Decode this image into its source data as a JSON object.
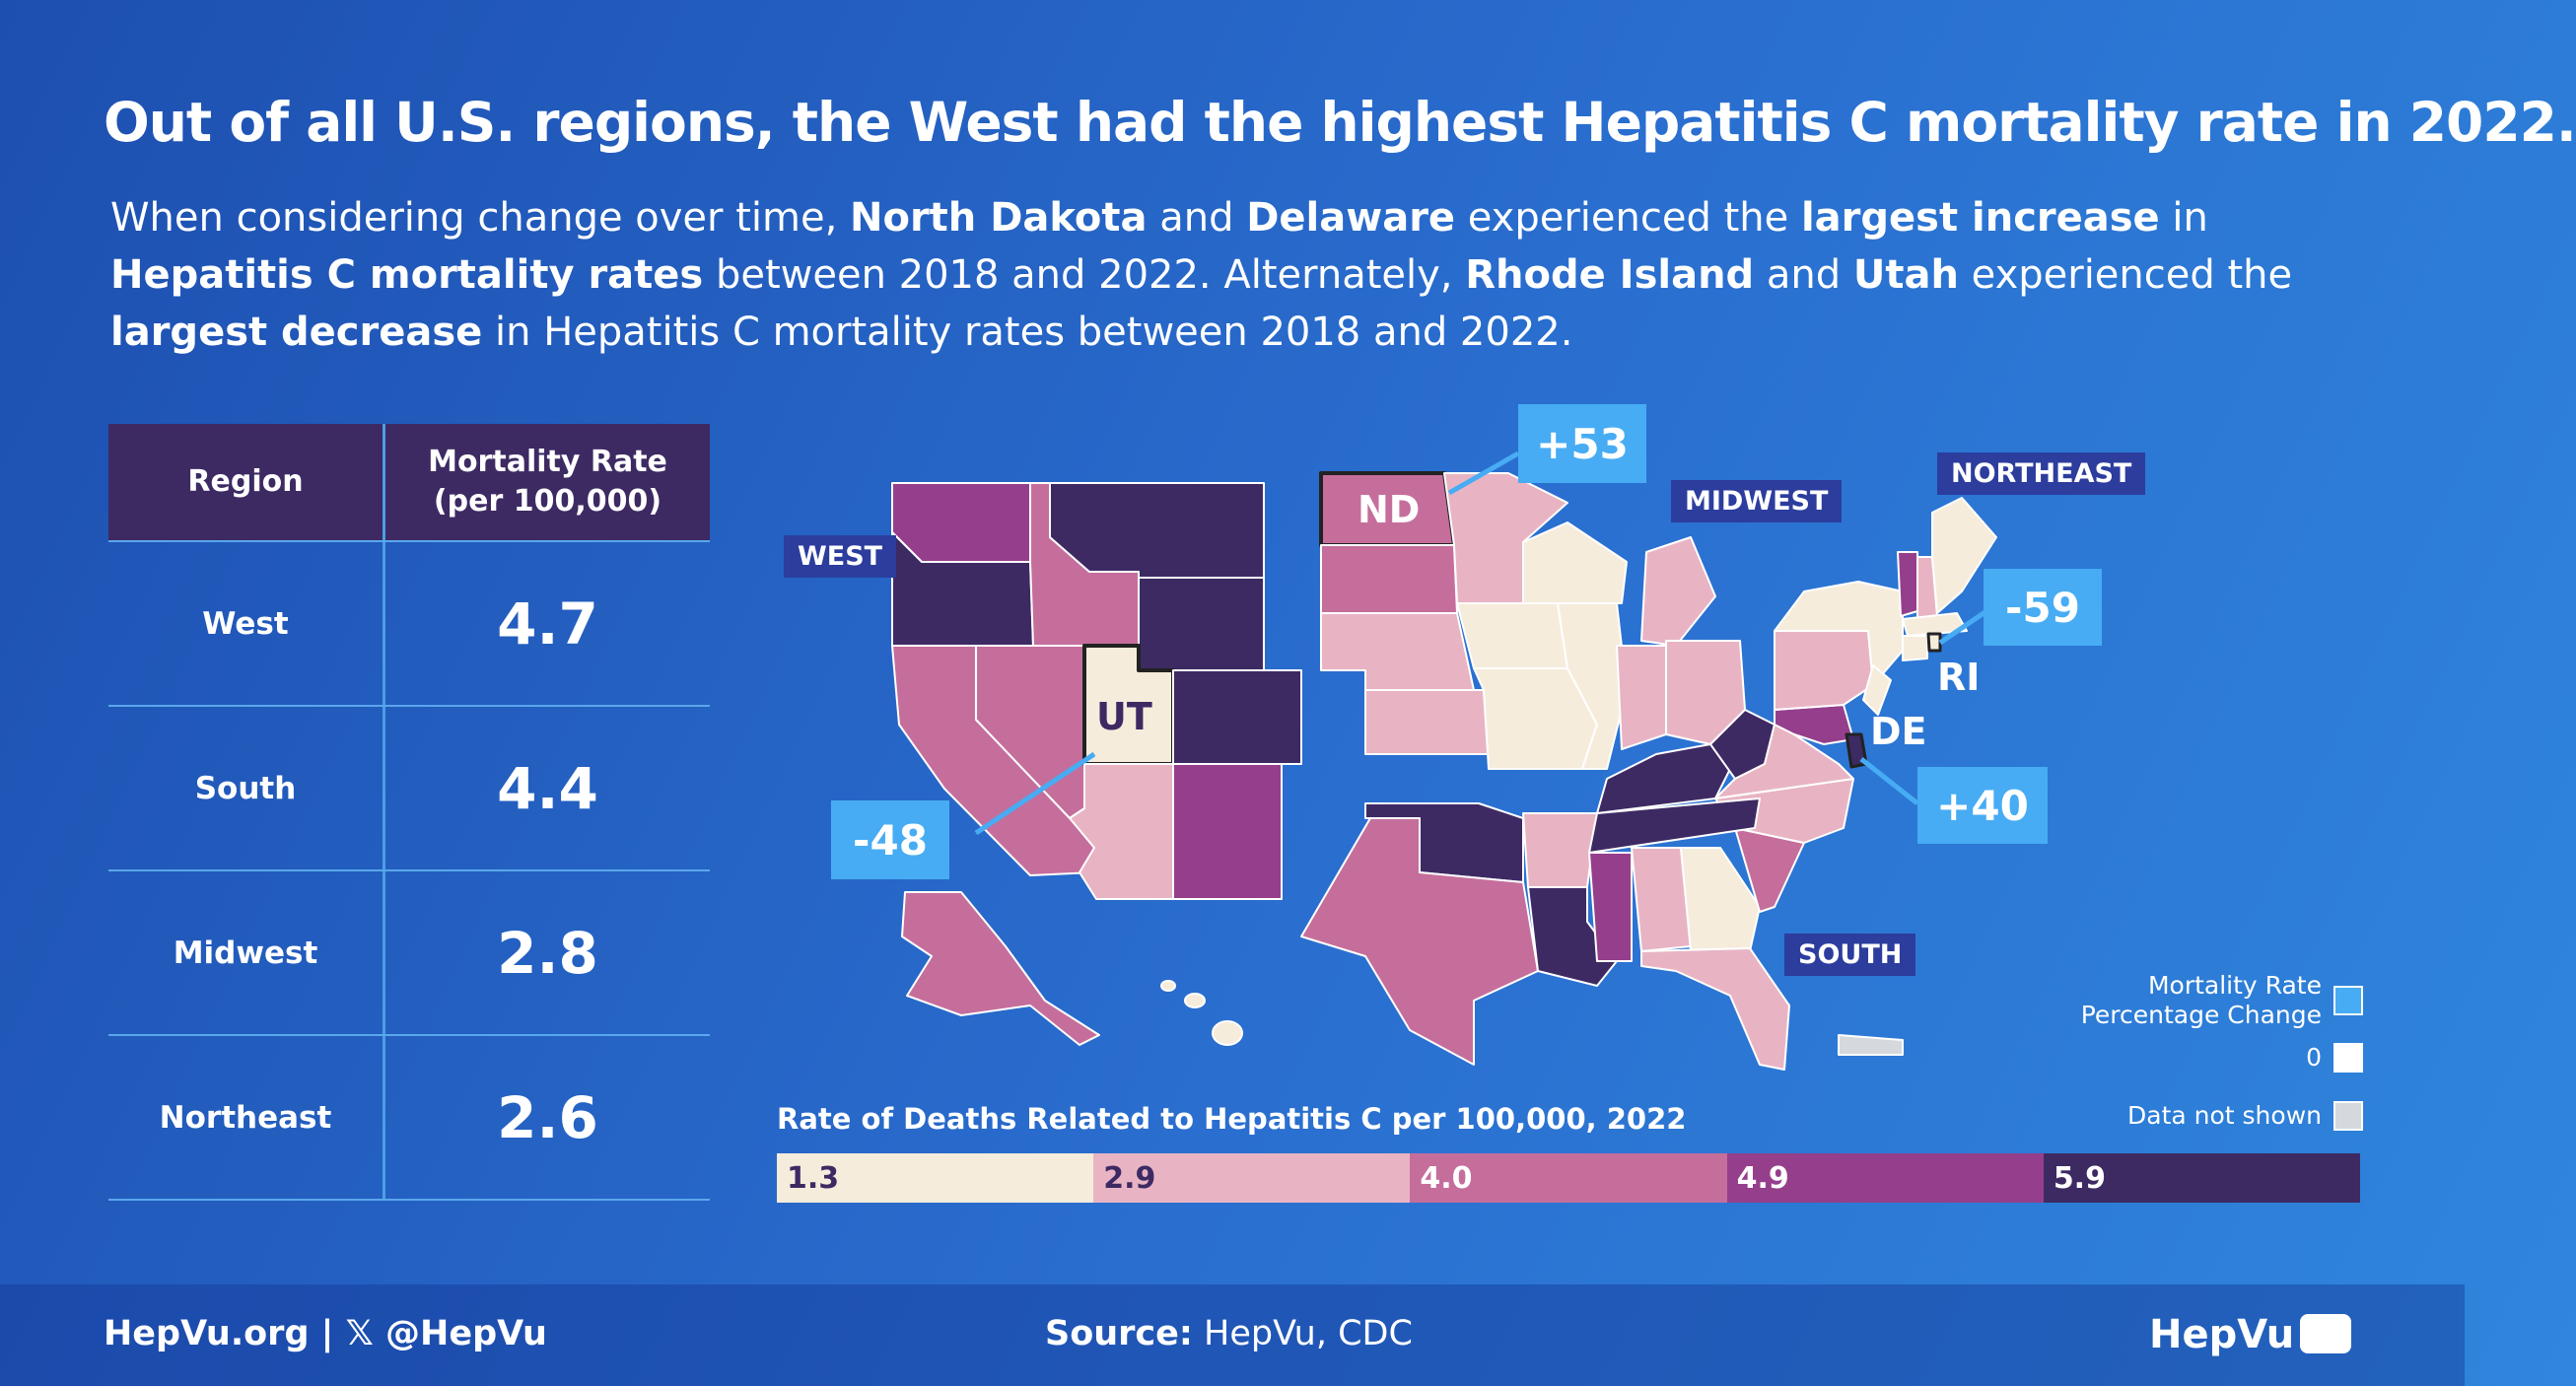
{
  "title": "Out of all U.S. regions, the West had the highest Hepatitis C mortality rate in 2022.",
  "intro": {
    "p1": "When considering change over time, ",
    "b1": "North Dakota",
    "p2": " and ",
    "b2": "Delaware",
    "p3": " experienced the ",
    "b3": "largest increase",
    "p4": " in ",
    "b4": "Hepatitis C mortality rates",
    "p5": " between 2018 and 2022. Alternately, ",
    "b5": "Rhode Island",
    "p6": " and ",
    "b6": "Utah",
    "p7": " experienced the ",
    "b7": "largest decrease",
    "p8": " in Hepatitis C mortality rates between 2018 and 2022."
  },
  "table": {
    "header_region": "Region",
    "header_rate_line1": "Mortality Rate",
    "header_rate_line2": "(per 100,000)",
    "rows": [
      {
        "region": "West",
        "rate": "4.7"
      },
      {
        "region": "South",
        "rate": "4.4"
      },
      {
        "region": "Midwest",
        "rate": "2.8"
      },
      {
        "region": "Northeast",
        "rate": "2.6"
      }
    ]
  },
  "map": {
    "regions": {
      "west": "WEST",
      "midwest": "MIDWEST",
      "northeast": "NORTHEAST",
      "south": "SOUTH"
    },
    "state_labels": {
      "nd": "ND",
      "ut": "UT",
      "ri": "RI",
      "de": "DE"
    },
    "callouts": {
      "nd": "+53",
      "ut": "-48",
      "ri": "-59",
      "de": "+40"
    }
  },
  "legend": {
    "title": "Rate of Deaths Related to Hepatitis C per 100,000, 2022",
    "bins": [
      "1.3",
      "2.9",
      "4.0",
      "4.9",
      "5.9"
    ],
    "colors": [
      "#f6ecdc",
      "#e8b4c4",
      "#c56e9c",
      "#953f8c",
      "#3d2a63"
    ],
    "key_change": "Mortality Rate\nPercentage Change",
    "key_zero": "0",
    "key_na": "Data not shown",
    "callout_color": "#47acf3"
  },
  "footer": {
    "left": "HepVu.org  |  𝕏 @HepVu",
    "source_label": "Source:",
    "source": " HepVu, CDC",
    "brand": "HepVu"
  }
}
